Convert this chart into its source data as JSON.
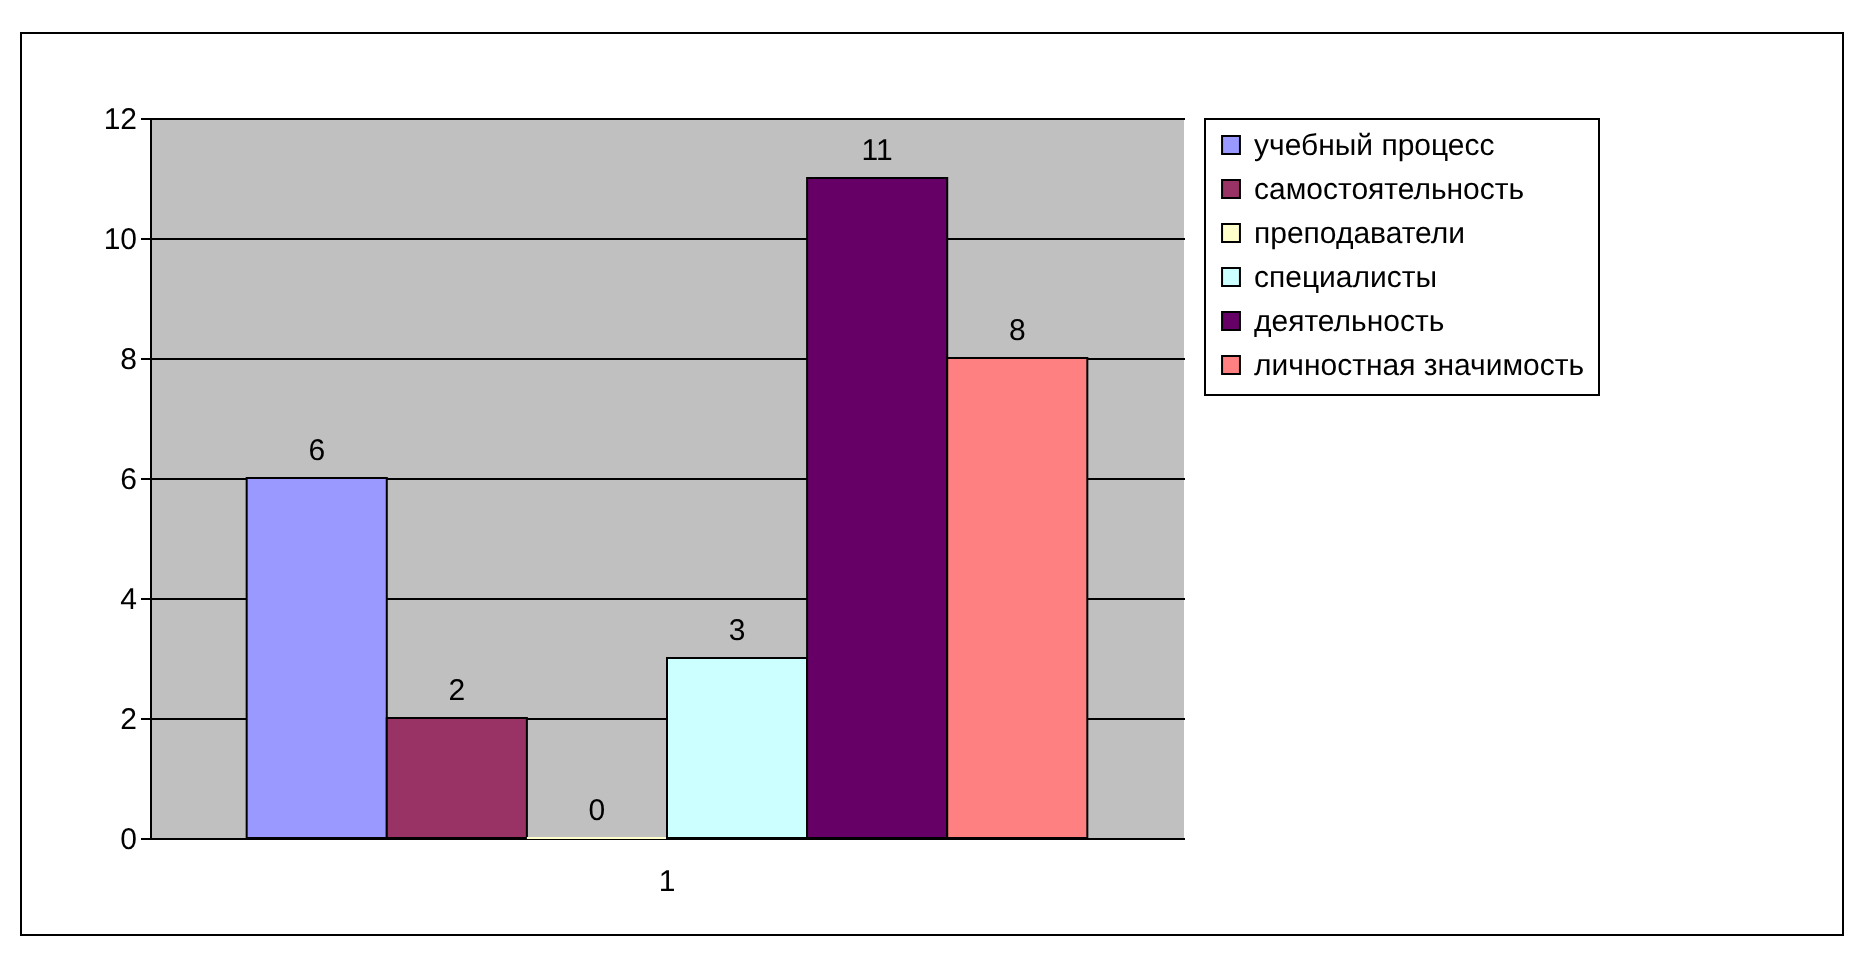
{
  "chart_data": {
    "type": "bar",
    "categories": [
      "1"
    ],
    "series": [
      {
        "name": "учебный процесс",
        "color": "#9999ff",
        "values": [
          6
        ]
      },
      {
        "name": "самостоятельность",
        "color": "#993366",
        "values": [
          2
        ]
      },
      {
        "name": "преподаватели",
        "color": "#ffffcc",
        "values": [
          0
        ]
      },
      {
        "name": "специалисты",
        "color": "#ccffff",
        "values": [
          3
        ]
      },
      {
        "name": "деятельность",
        "color": "#660066",
        "values": [
          11
        ]
      },
      {
        "name": "личностная значимость",
        "color": "#ff8080",
        "values": [
          8
        ]
      }
    ],
    "ylim": [
      0,
      12
    ],
    "yticks": [
      0,
      2,
      4,
      6,
      8,
      10,
      12
    ],
    "grid": "y",
    "legend": "right",
    "data_labels": true
  }
}
